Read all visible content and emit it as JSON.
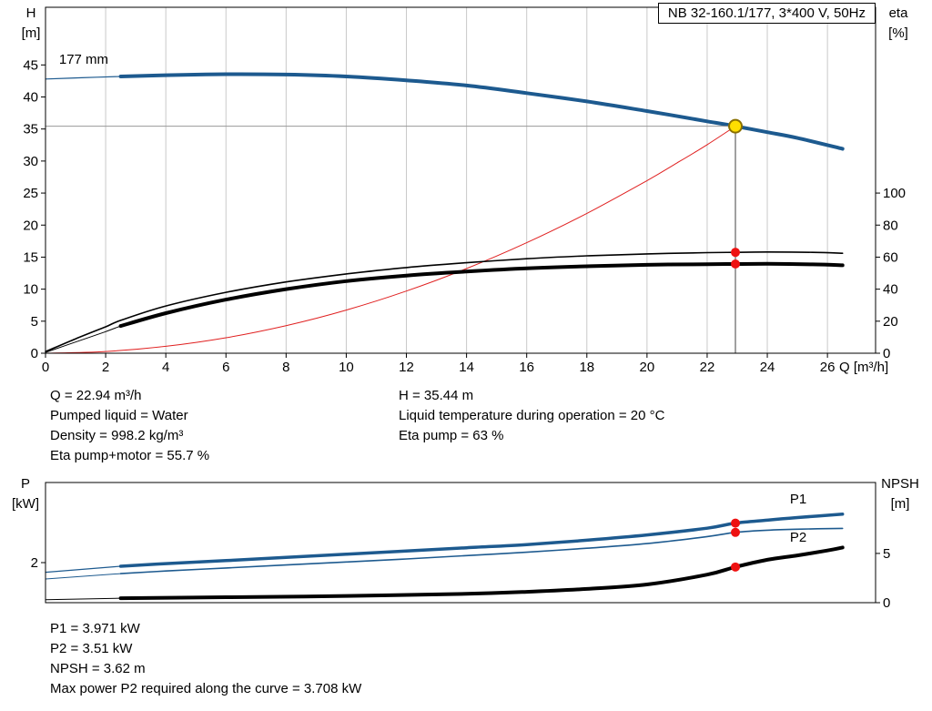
{
  "colors": {
    "curve_blue": "#1d5a8f",
    "curve_red": "#e02020",
    "curve_black": "#000000",
    "grid": "#c9c9c9",
    "guide_horizontal": "#999999",
    "guide_vertical": "#444444",
    "dot_red": "#ee1111",
    "duty_fill": "#ffdf00",
    "duty_ring": "#8a7000",
    "label_blue": "#2a6db5"
  },
  "duty_info_left": [
    "Q = 22.94 m³/h",
    "Pumped liquid = Water",
    "Density = 998.2 kg/m³",
    "Eta pump+motor = 55.7 %"
  ],
  "duty_info_right": [
    "H = 35.44 m",
    "Liquid temperature during operation = 20 °C",
    "Eta pump = 63 %"
  ],
  "power_info": [
    "P1 = 3.971 kW",
    "P2 = 3.51 kW",
    "NPSH = 3.62 m",
    "Max power P2 required along the curve = 3.708 kW"
  ],
  "chart_data": [
    {
      "type": "line",
      "title": "NB 32-160.1/177, 3*400 V, 50Hz",
      "x": {
        "label": "Q [m³/h]",
        "min": 0,
        "max": 27.6,
        "ticks": [
          0,
          2,
          4,
          6,
          8,
          10,
          12,
          14,
          16,
          18,
          20,
          22,
          24,
          26
        ],
        "grid": true,
        "show_tick_labels": true
      },
      "y_left": {
        "name": "H",
        "unit": "[m]",
        "min": 0,
        "max": 54,
        "ticks": [
          0,
          5,
          10,
          15,
          20,
          25,
          30,
          35,
          40,
          45
        ]
      },
      "y_right": {
        "name": "eta",
        "unit": "[%]",
        "min": 0,
        "max": 216,
        "ticks": [
          0,
          20,
          40,
          60,
          80,
          100
        ]
      },
      "series": [
        {
          "name": "system-curve",
          "axis": "left",
          "color": "#e02020",
          "width": 1,
          "points": [
            [
              0,
              0
            ],
            [
              2,
              0.27
            ],
            [
              4,
              1.08
            ],
            [
              6,
              2.42
            ],
            [
              8,
              4.31
            ],
            [
              10,
              6.73
            ],
            [
              12,
              9.7
            ],
            [
              14,
              13.21
            ],
            [
              16,
              17.25
            ],
            [
              18,
              21.83
            ],
            [
              20,
              26.95
            ],
            [
              21,
              29.71
            ],
            [
              22,
              32.55
            ],
            [
              22.94,
              35.44
            ]
          ]
        },
        {
          "name": "head-curve-lead",
          "axis": "left",
          "color": "#1d5a8f",
          "width": 1.2,
          "points": [
            [
              0,
              42.8
            ],
            [
              1.2,
              43.0
            ],
            [
              2.5,
              43.2
            ]
          ]
        },
        {
          "name": "head-curve-177mm",
          "axis": "left",
          "color": "#1d5a8f",
          "width": 4,
          "points": [
            [
              2.5,
              43.2
            ],
            [
              4,
              43.4
            ],
            [
              6,
              43.55
            ],
            [
              8,
              43.5
            ],
            [
              10,
              43.2
            ],
            [
              12,
              42.6
            ],
            [
              14,
              41.8
            ],
            [
              16,
              40.6
            ],
            [
              18,
              39.3
            ],
            [
              20,
              37.8
            ],
            [
              22,
              36.2
            ],
            [
              22.94,
              35.44
            ],
            [
              24,
              34.5
            ],
            [
              25,
              33.6
            ],
            [
              26.5,
              31.9
            ]
          ]
        },
        {
          "name": "eta-pump-curve",
          "axis": "right",
          "color": "#000000",
          "width": 1.6,
          "points": [
            [
              0,
              1
            ],
            [
              1,
              9
            ],
            [
              2,
              16.5
            ],
            [
              2.5,
              20.5
            ],
            [
              4,
              29.5
            ],
            [
              6,
              38
            ],
            [
              8,
              44.5
            ],
            [
              10,
              49.5
            ],
            [
              12,
              53.5
            ],
            [
              14,
              56.5
            ],
            [
              16,
              59
            ],
            [
              18,
              60.8
            ],
            [
              20,
              62
            ],
            [
              22,
              62.8
            ],
            [
              22.94,
              63
            ],
            [
              24,
              63.2
            ],
            [
              25.5,
              63
            ],
            [
              26.5,
              62.4
            ]
          ]
        },
        {
          "name": "eta-pump-motor-lead",
          "axis": "right",
          "color": "#000000",
          "width": 1,
          "points": [
            [
              0,
              0.5
            ],
            [
              1,
              7
            ],
            [
              2,
              13.5
            ],
            [
              2.5,
              17
            ]
          ]
        },
        {
          "name": "eta-pump-motor-curve",
          "axis": "right",
          "color": "#000000",
          "width": 4,
          "points": [
            [
              2.5,
              17
            ],
            [
              4,
              25
            ],
            [
              6,
              33.5
            ],
            [
              8,
              40
            ],
            [
              10,
              45
            ],
            [
              12,
              48.5
            ],
            [
              14,
              51
            ],
            [
              16,
              53
            ],
            [
              18,
              54.3
            ],
            [
              20,
              55.2
            ],
            [
              22,
              55.6
            ],
            [
              22.94,
              55.7
            ],
            [
              24,
              55.8
            ],
            [
              25.5,
              55.5
            ],
            [
              26.5,
              54.9
            ]
          ]
        }
      ],
      "guides": {
        "vertical_q": 22.94,
        "horizontal_v": 35.44
      },
      "markers": [
        {
          "name": "duty-point-marker",
          "style": "duty",
          "axis": "left",
          "q": 22.94,
          "v": 35.44
        },
        {
          "name": "eta-pump-duty-dot",
          "style": "dot",
          "axis": "right",
          "q": 22.94,
          "v": 63
        },
        {
          "name": "eta-pump-motor-duty-dot",
          "style": "dot",
          "axis": "right",
          "q": 22.94,
          "v": 55.7
        }
      ],
      "annotations": [
        {
          "text": "177 mm",
          "q": 0.45,
          "v": 45.2,
          "axis": "left",
          "color": "#000000",
          "anchor": "start"
        }
      ]
    },
    {
      "type": "line",
      "title": "",
      "x": {
        "label": "",
        "min": 0,
        "max": 27.6,
        "ticks": [],
        "grid": false,
        "show_tick_labels": false
      },
      "y_left": {
        "name": "P",
        "unit": "[kW]",
        "min": 0,
        "max": 6,
        "ticks": [
          2
        ]
      },
      "y_right": {
        "name": "NPSH",
        "unit": "[m]",
        "min": 0,
        "max": 12.2,
        "ticks": [
          0,
          5
        ]
      },
      "series": [
        {
          "name": "p1-lead",
          "axis": "left",
          "color": "#1d5a8f",
          "width": 1.2,
          "points": [
            [
              0,
              1.52
            ],
            [
              2.5,
              1.82
            ]
          ]
        },
        {
          "name": "p1-curve",
          "axis": "left",
          "color": "#1d5a8f",
          "width": 3.5,
          "points": [
            [
              2.5,
              1.82
            ],
            [
              4,
              1.95
            ],
            [
              6,
              2.1
            ],
            [
              8,
              2.26
            ],
            [
              10,
              2.42
            ],
            [
              12,
              2.58
            ],
            [
              14,
              2.74
            ],
            [
              16,
              2.9
            ],
            [
              18,
              3.12
            ],
            [
              20,
              3.38
            ],
            [
              22,
              3.72
            ],
            [
              22.94,
              3.971
            ],
            [
              24,
              4.12
            ],
            [
              25,
              4.25
            ],
            [
              26.5,
              4.42
            ]
          ]
        },
        {
          "name": "p2-lead",
          "axis": "left",
          "color": "#1d5a8f",
          "width": 1,
          "points": [
            [
              0,
              1.18
            ],
            [
              2.5,
              1.45
            ]
          ]
        },
        {
          "name": "p2-curve",
          "axis": "left",
          "color": "#1d5a8f",
          "width": 1.6,
          "points": [
            [
              2.5,
              1.45
            ],
            [
              4,
              1.58
            ],
            [
              6,
              1.73
            ],
            [
              8,
              1.88
            ],
            [
              10,
              2.03
            ],
            [
              12,
              2.18
            ],
            [
              14,
              2.35
            ],
            [
              16,
              2.52
            ],
            [
              18,
              2.72
            ],
            [
              20,
              2.95
            ],
            [
              22,
              3.3
            ],
            [
              22.94,
              3.51
            ],
            [
              24,
              3.62
            ],
            [
              25,
              3.67
            ],
            [
              26.5,
              3.71
            ]
          ]
        },
        {
          "name": "npsh-lead",
          "axis": "right",
          "color": "#000000",
          "width": 1,
          "points": [
            [
              0,
              0.3
            ],
            [
              2.5,
              0.45
            ]
          ]
        },
        {
          "name": "npsh-curve",
          "axis": "right",
          "color": "#000000",
          "width": 4,
          "points": [
            [
              2.5,
              0.45
            ],
            [
              6,
              0.55
            ],
            [
              10,
              0.68
            ],
            [
              14,
              0.9
            ],
            [
              16,
              1.1
            ],
            [
              18,
              1.4
            ],
            [
              20,
              1.85
            ],
            [
              22,
              2.85
            ],
            [
              22.94,
              3.62
            ],
            [
              24,
              4.35
            ],
            [
              25,
              4.8
            ],
            [
              26,
              5.3
            ],
            [
              26.5,
              5.6
            ]
          ]
        }
      ],
      "guides": null,
      "markers": [
        {
          "name": "p1-duty-dot",
          "style": "dot",
          "axis": "left",
          "q": 22.94,
          "v": 3.971
        },
        {
          "name": "p2-duty-dot",
          "style": "dot",
          "axis": "left",
          "q": 22.94,
          "v": 3.51
        },
        {
          "name": "npsh-duty-dot",
          "style": "dot",
          "axis": "right",
          "q": 22.94,
          "v": 3.62
        }
      ],
      "annotations": [
        {
          "text": "P1",
          "q": 24.75,
          "v": 4.95,
          "axis": "left",
          "color": "#2a6db5",
          "anchor": "start"
        },
        {
          "text": "P2",
          "q": 24.75,
          "v": 3.05,
          "axis": "left",
          "color": "#2a6db5",
          "anchor": "start"
        }
      ]
    }
  ]
}
